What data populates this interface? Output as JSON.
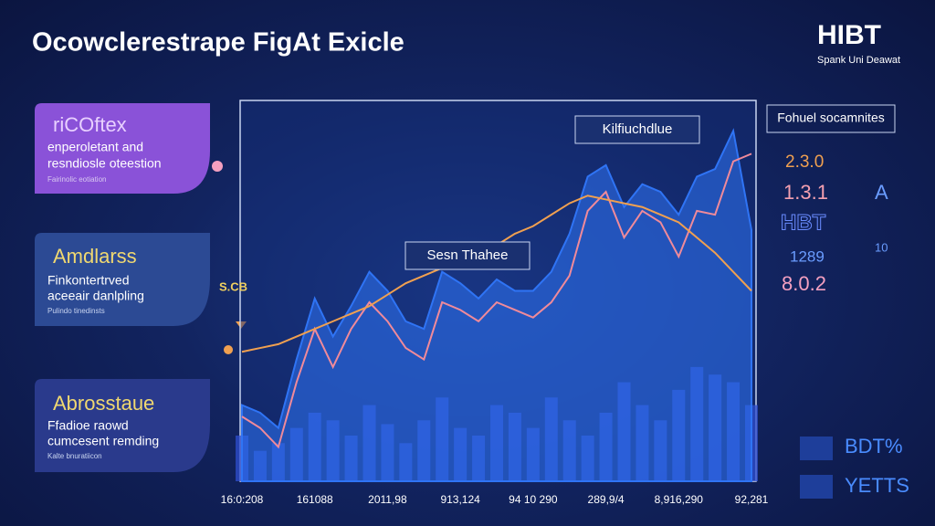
{
  "header": {
    "title": "Ocowclerestrape FigΑt Exicle",
    "logo": "HIBT",
    "logo_subtitle": "Spank Uni Deawat"
  },
  "cards": [
    {
      "title": "riCOftex",
      "lines": [
        "enperoletant and",
        "resndiosle oteestion"
      ],
      "footnote": "Fairinolic eotiation"
    },
    {
      "title": "Amdlarss",
      "lines": [
        "Finkontertrved",
        "aceeair danlpling"
      ],
      "footnote": "Pulindo tinedinsts"
    },
    {
      "title": "Abrosstaue",
      "lines": [
        "Ffadioe raowd",
        "cumcesent remding"
      ],
      "footnote": "Kalte bnuratiicon"
    }
  ],
  "chart_data": {
    "type": "line",
    "categories": [
      "16:0:208",
      null,
      null,
      null,
      "161088",
      null,
      null,
      null,
      "2011,98",
      null,
      null,
      null,
      "913,124",
      null,
      null,
      null,
      "94 10 290",
      null,
      null,
      null,
      "289,9/4",
      null,
      null,
      null,
      "8,916,290",
      null,
      null,
      null,
      "92,281"
    ],
    "ylim": [
      0,
      100
    ],
    "annotations": [
      "Kilfiuchdlue",
      "Sesn Thahee",
      "S.CB"
    ],
    "series": [
      {
        "type": "area",
        "color": "#2f74f5",
        "values": [
          20,
          18,
          14,
          32,
          48,
          38,
          46,
          55,
          50,
          42,
          40,
          55,
          52,
          48,
          53,
          50,
          50,
          55,
          65,
          80,
          83,
          72,
          78,
          76,
          70,
          80,
          82,
          92,
          66
        ]
      },
      {
        "type": "line",
        "color": "#f08a9a",
        "values": [
          17,
          14,
          9,
          26,
          40,
          30,
          40,
          47,
          42,
          35,
          32,
          47,
          45,
          42,
          47,
          45,
          43,
          47,
          54,
          71,
          76,
          64,
          71,
          68,
          59,
          71,
          70,
          84,
          86
        ]
      },
      {
        "type": "line",
        "color": "#f0a050",
        "values": [
          34,
          35,
          36,
          38,
          40,
          42,
          44,
          46,
          49,
          52,
          54,
          56,
          58,
          60,
          62,
          65,
          67,
          70,
          73,
          75,
          74,
          73,
          72,
          70,
          68,
          64,
          60,
          55,
          50
        ]
      },
      {
        "type": "bar",
        "color": "#2f4fd0",
        "values": [
          12,
          8,
          10,
          14,
          18,
          16,
          12,
          20,
          15,
          10,
          16,
          22,
          14,
          12,
          20,
          18,
          14,
          22,
          16,
          12,
          18,
          26,
          20,
          16,
          24,
          30,
          28,
          26,
          20
        ]
      }
    ]
  },
  "side_panel": {
    "title": "Fohuel socamnites",
    "items": [
      "2.3.0",
      "1.3.1",
      "A",
      "HBT",
      "1289",
      "10",
      "8.0.2"
    ]
  },
  "footer": {
    "items": [
      "BDT%",
      "YETTS"
    ]
  }
}
